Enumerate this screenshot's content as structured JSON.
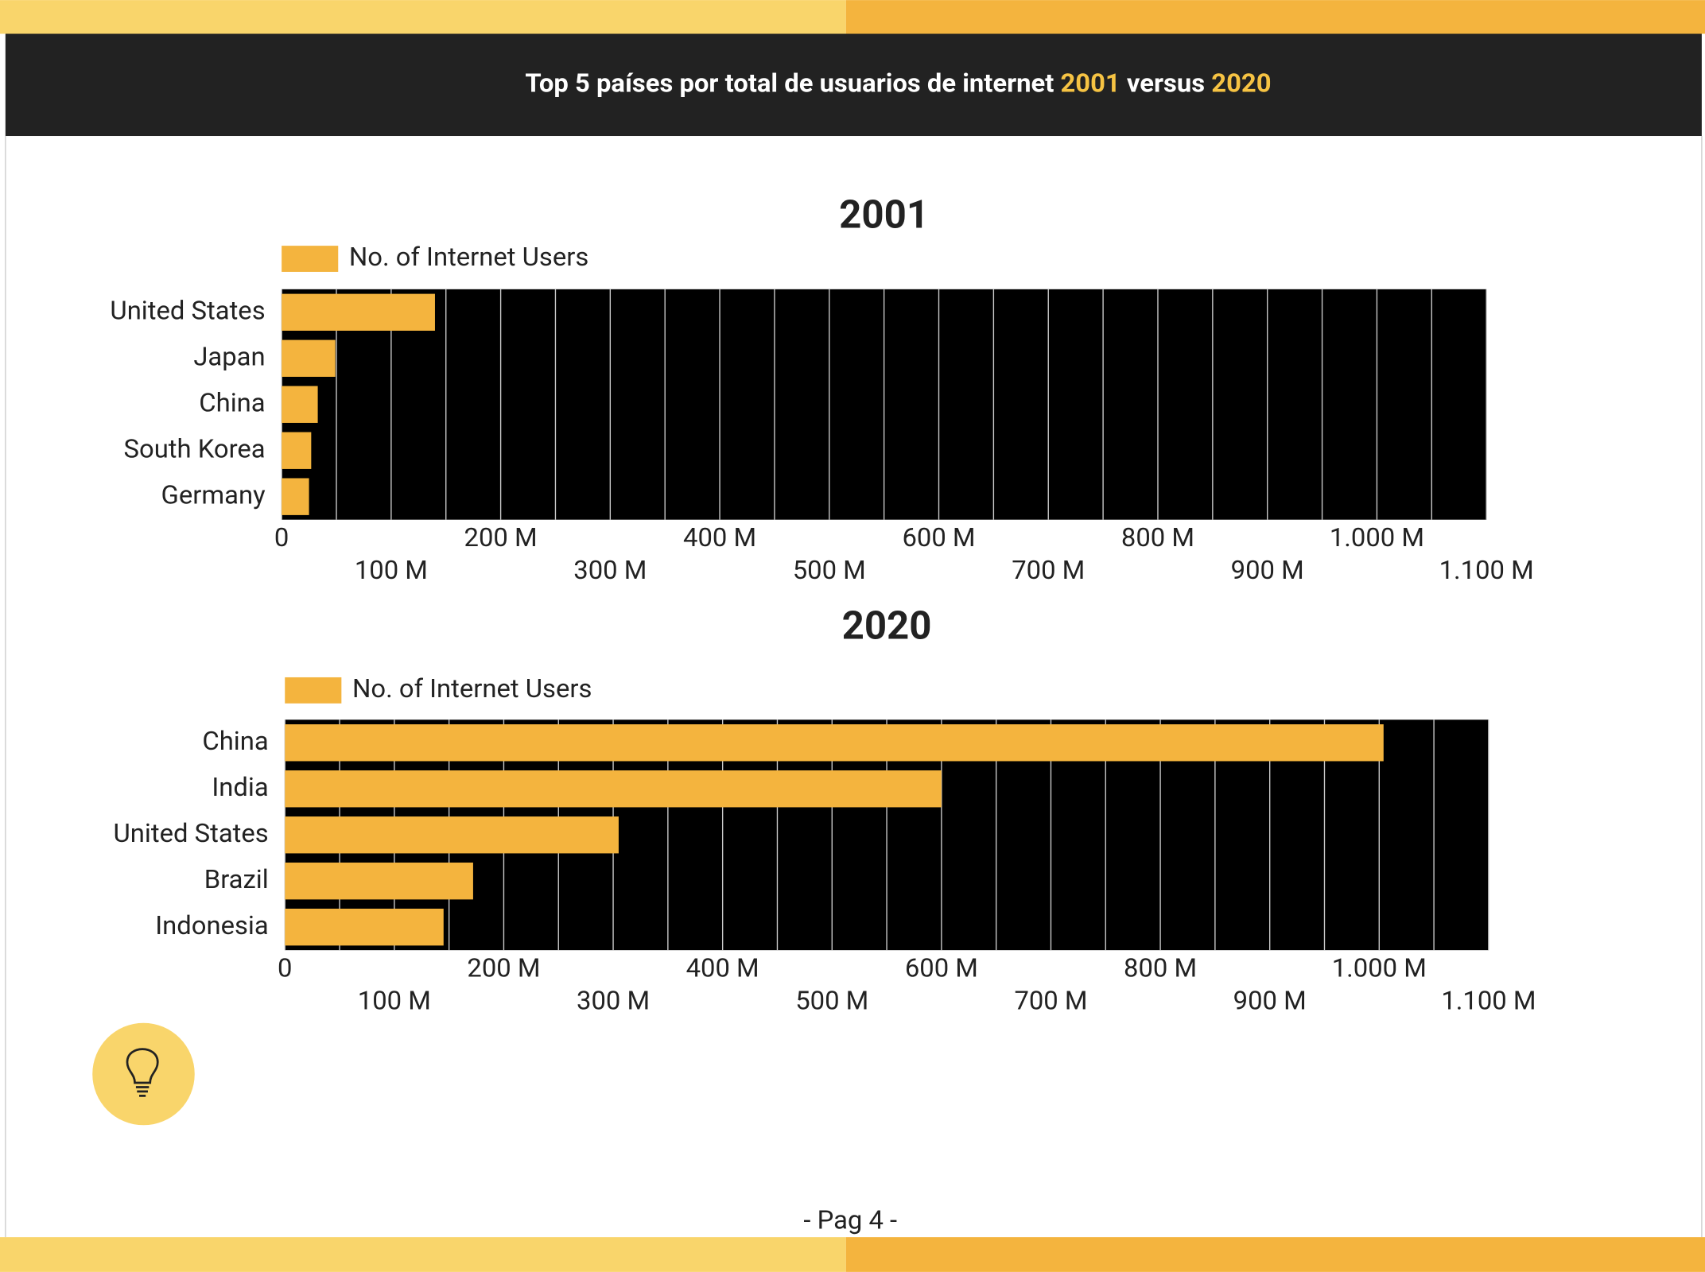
{
  "header": {
    "title": [
      "Top 5 países por total de usuarios de internet ",
      "2001",
      " versus ",
      "2020"
    ]
  },
  "chart_data": [
    {
      "type": "bar",
      "orientation": "horizontal",
      "title": "2001",
      "categories": [
        "United States",
        "Japan",
        "China",
        "South Korea",
        "Germany"
      ],
      "series": [
        {
          "name": "No. of Internet Users",
          "color": "#f4b43e",
          "values": [
            140000000,
            49000000,
            33000000,
            27000000,
            25000000
          ]
        }
      ],
      "xlim": [
        0,
        1100000000
      ],
      "xticks": [
        0,
        {
          "value": 100000000,
          "label": "100 M"
        },
        {
          "value": 200000000,
          "label": "200 M"
        },
        {
          "value": 300000000,
          "label": "300 M"
        },
        {
          "value": 400000000,
          "label": "400 M"
        },
        {
          "value": 500000000,
          "label": "500 M"
        },
        {
          "value": 600000000,
          "label": "600 M"
        },
        {
          "value": 700000000,
          "label": "700 M"
        },
        {
          "value": 800000000,
          "label": "800 M"
        },
        {
          "value": 900000000,
          "label": "900 M"
        },
        {
          "value": 1000000000,
          "label": "1.000 M"
        },
        {
          "value": 1100000000,
          "label": "1.100 M"
        }
      ],
      "grid": true,
      "grid_color": "#cccccc",
      "plot_background": "#000000",
      "legend": "top-left"
    },
    {
      "type": "bar",
      "orientation": "horizontal",
      "title": "2020",
      "categories": [
        "China",
        "India",
        "United States",
        "Brazil",
        "Indonesia"
      ],
      "series": [
        {
          "name": "No. of Internet Users",
          "color": "#f4b43e",
          "values": [
            1004000000,
            600000000,
            305000000,
            172000000,
            145000000
          ]
        }
      ],
      "xlim": [
        0,
        1100000000
      ],
      "xticks": [
        0,
        {
          "value": 100000000,
          "label": "100 M"
        },
        {
          "value": 200000000,
          "label": "200 M"
        },
        {
          "value": 300000000,
          "label": "300 M"
        },
        {
          "value": 400000000,
          "label": "400 M"
        },
        {
          "value": 500000000,
          "label": "500 M"
        },
        {
          "value": 600000000,
          "label": "600 M"
        },
        {
          "value": 700000000,
          "label": "700 M"
        },
        {
          "value": 800000000,
          "label": "800 M"
        },
        {
          "value": 900000000,
          "label": "900 M"
        },
        {
          "value": 1000000000,
          "label": "1.000 M"
        },
        {
          "value": 1100000000,
          "label": "1.100 M"
        }
      ],
      "grid": true,
      "grid_color": "#cccccc",
      "plot_background": "#000000",
      "legend": "top-left"
    }
  ],
  "footer": {
    "page": "- Pag 4 -"
  }
}
